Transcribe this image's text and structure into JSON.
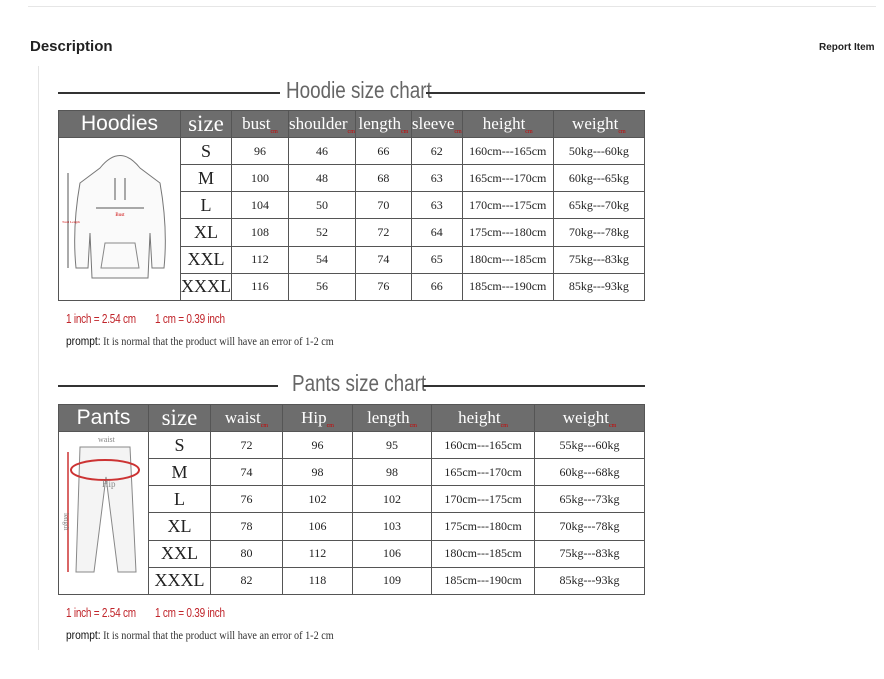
{
  "page": {
    "title": "Description",
    "report": "Report Item"
  },
  "hoodie": {
    "title": "Hoodie size chart",
    "headers": [
      "Hoodies",
      "size",
      "bust",
      "shoulder",
      "length",
      "sleeve",
      "height",
      "weight"
    ],
    "unit": "cm",
    "rows": [
      [
        "S",
        "96",
        "46",
        "66",
        "62",
        "160cm---165cm",
        "50kg---60kg"
      ],
      [
        "M",
        "100",
        "48",
        "68",
        "63",
        "165cm---170cm",
        "60kg---65kg"
      ],
      [
        "L",
        "104",
        "50",
        "70",
        "63",
        "170cm---175cm",
        "65kg---70kg"
      ],
      [
        "XL",
        "108",
        "52",
        "72",
        "64",
        "175cm---180cm",
        "70kg---78kg"
      ],
      [
        "XXL",
        "112",
        "54",
        "74",
        "65",
        "180cm---185cm",
        "75kg---83kg"
      ],
      [
        "XXXL",
        "116",
        "56",
        "76",
        "66",
        "185cm---190cm",
        "85kg---93kg"
      ]
    ],
    "diagram": {
      "bust": "Bust",
      "length": "Total Length"
    }
  },
  "pants": {
    "title": "Pants size chart",
    "headers": [
      "Pants",
      "size",
      "waist",
      "Hip",
      "length",
      "height",
      "weight"
    ],
    "unit": "cm",
    "rows": [
      [
        "S",
        "72",
        "96",
        "95",
        "160cm---165cm",
        "55kg---60kg"
      ],
      [
        "M",
        "74",
        "98",
        "98",
        "165cm---170cm",
        "60kg---68kg"
      ],
      [
        "L",
        "76",
        "102",
        "102",
        "170cm---175cm",
        "65kg---73kg"
      ],
      [
        "XL",
        "78",
        "106",
        "103",
        "175cm---180cm",
        "70kg---78kg"
      ],
      [
        "XXL",
        "80",
        "112",
        "106",
        "180cm---185cm",
        "75kg---83kg"
      ],
      [
        "XXXL",
        "82",
        "118",
        "109",
        "185cm---190cm",
        "85kg---93kg"
      ]
    ],
    "diagram": {
      "waist": "waist",
      "hip": "Hip",
      "length": "length"
    }
  },
  "notes": {
    "inch": "1 inch = 2.54 cm",
    "cm": "1 cm = 0.39 inch",
    "prompt_label": "prompt:",
    "prompt_text": " It is normal that the product will have an error of 1-2 cm"
  }
}
